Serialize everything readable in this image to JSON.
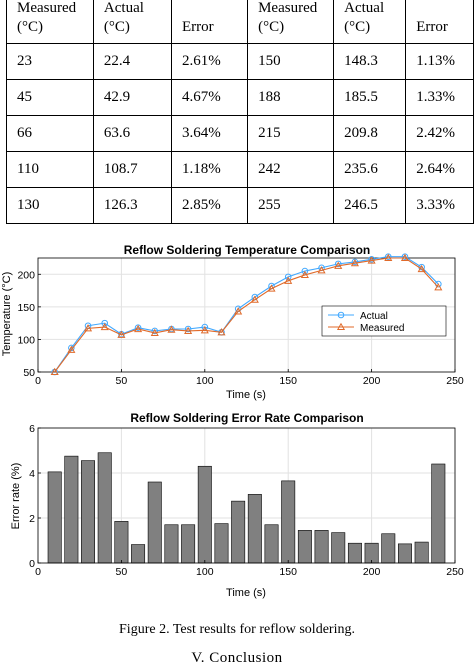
{
  "table": {
    "headers": [
      [
        "Measured",
        "(°C)"
      ],
      [
        "Actual",
        "(°C)"
      ],
      [
        "Error",
        ""
      ],
      [
        "Measured",
        "(°C)"
      ],
      [
        "Actual",
        "(°C)"
      ],
      [
        "Error",
        ""
      ]
    ],
    "rows": [
      [
        "23",
        "22.4",
        "2.61%",
        "150",
        "148.3",
        "1.13%"
      ],
      [
        "45",
        "42.9",
        "4.67%",
        "188",
        "185.5",
        "1.33%"
      ],
      [
        "66",
        "63.6",
        "3.64%",
        "215",
        "209.8",
        "2.42%"
      ],
      [
        "110",
        "108.7",
        "1.18%",
        "242",
        "235.6",
        "2.64%"
      ],
      [
        "130",
        "126.3",
        "2.85%",
        "255",
        "246.5",
        "3.33%"
      ]
    ]
  },
  "chart_data": [
    {
      "type": "line",
      "title": "Reflow Soldering Temperature Comparison",
      "xlabel": "Time (s)",
      "ylabel": "Temperature (°C)",
      "xlim": [
        0,
        250
      ],
      "ylim": [
        50,
        225
      ],
      "xticks": [
        "0",
        "50",
        "100",
        "150",
        "200",
        "250"
      ],
      "yticks": [
        "50",
        "100",
        "150",
        "200"
      ],
      "grid": true,
      "legend_position": "center-right",
      "x": [
        10,
        20,
        30,
        40,
        50,
        60,
        70,
        80,
        90,
        100,
        110,
        120,
        130,
        140,
        150,
        160,
        170,
        180,
        190,
        200,
        210,
        220,
        230,
        240
      ],
      "series": [
        {
          "name": "Actual",
          "color": "#40a8ff",
          "marker": "circle",
          "values": [
            50,
            87,
            121,
            125,
            108,
            118,
            113,
            116,
            116,
            119,
            111,
            147,
            165,
            182,
            196,
            205,
            210,
            216,
            219,
            223,
            227,
            227,
            211,
            185
          ]
        },
        {
          "name": "Measured",
          "color": "#e06a2a",
          "marker": "triangle",
          "values": [
            50,
            84,
            117,
            119,
            107,
            116,
            110,
            115,
            113,
            114,
            111,
            143,
            161,
            178,
            190,
            199,
            206,
            213,
            217,
            221,
            225,
            225,
            208,
            180
          ]
        }
      ]
    },
    {
      "type": "bar",
      "title": "Reflow Soldering Error Rate Comparison",
      "xlabel": "Time (s)",
      "ylabel": "Error rate (%)",
      "xlim": [
        0,
        250
      ],
      "ylim": [
        0,
        6
      ],
      "xticks": [
        "0",
        "50",
        "100",
        "150",
        "200",
        "250"
      ],
      "yticks": [
        "0",
        "2",
        "4",
        "6"
      ],
      "grid": true,
      "color": "#808080",
      "x": [
        10,
        20,
        30,
        40,
        50,
        60,
        70,
        80,
        90,
        100,
        110,
        120,
        130,
        140,
        150,
        160,
        170,
        180,
        190,
        200,
        210,
        220,
        230,
        240
      ],
      "values": [
        4.05,
        4.75,
        4.55,
        4.9,
        1.85,
        0.82,
        3.6,
        1.7,
        1.7,
        4.3,
        1.75,
        2.75,
        3.05,
        1.7,
        3.65,
        1.45,
        1.45,
        1.35,
        0.88,
        0.88,
        1.3,
        0.85,
        0.93,
        4.4
      ]
    }
  ],
  "figure_caption": "Figure 2. Test results for reflow soldering.",
  "section_heading": "V.   Conclusion"
}
